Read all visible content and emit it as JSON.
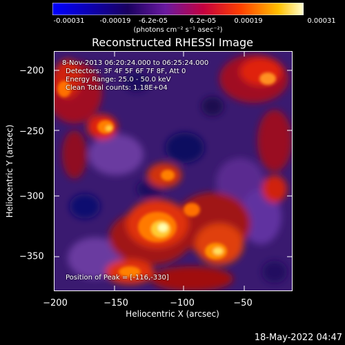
{
  "colorbar": {
    "ticks": [
      "-0.00031",
      "-0.00019",
      "-6.2e-05",
      "6.2e-05",
      "0.00019",
      "0.00031"
    ],
    "units": "(photons cm⁻² s⁻¹ asec⁻²)",
    "colors": [
      "#0000ff",
      "#000070",
      "#4b0082",
      "#8b00ff",
      "#ff0000",
      "#ffd700",
      "#ffffff"
    ]
  },
  "title": "Reconstructed RHESSI Image",
  "annotations": {
    "time_range": "8-Nov-2013 06:20:24.000 to 06:25:24.000",
    "detectors": "Detectors: 3F 4F 5F 6F 7F 8F, Att 0",
    "energy_range": "Energy Range: 25.0 - 50.0 keV",
    "method_counts": "Clean    Total counts: 1.18E+04",
    "peak": "Position of Peak = [-116,-330]"
  },
  "axes": {
    "xlabel": "Heliocentric X (arcsec)",
    "ylabel": "Heliocentric Y (arcsec)",
    "xticks": [
      "−200",
      "−150",
      "−100",
      "−50"
    ],
    "yticks": [
      "−200",
      "−250",
      "−300",
      "−350"
    ]
  },
  "timestamp": "18-May-2022 04:47"
}
